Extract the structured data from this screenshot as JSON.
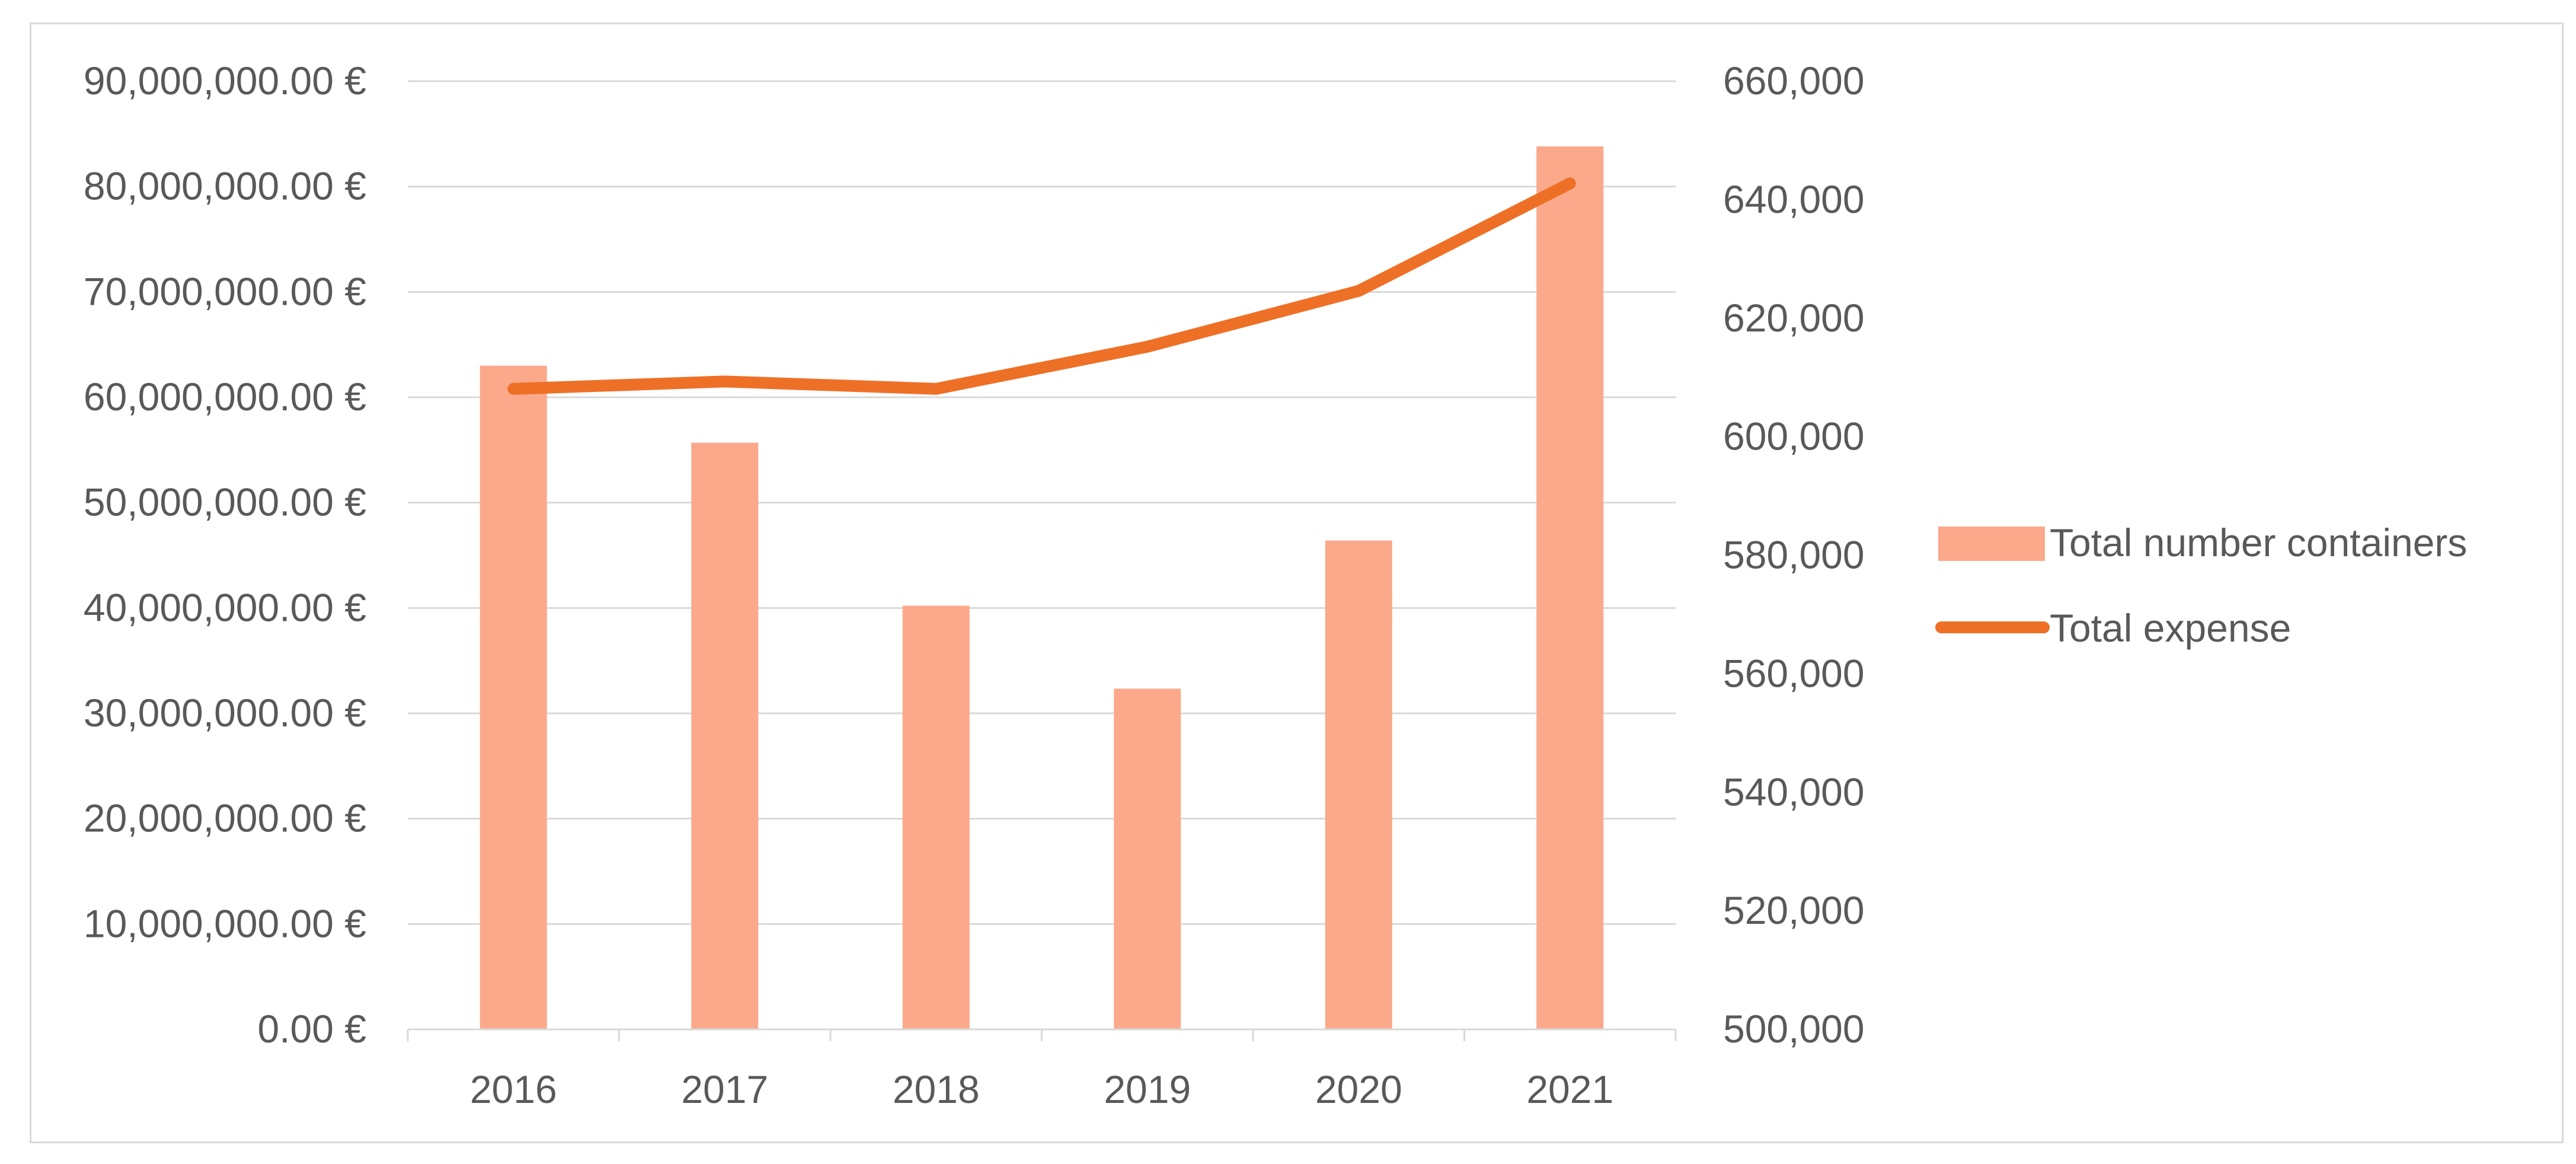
{
  "chart_data": {
    "type": "bar",
    "title": "",
    "xlabel": "",
    "ylabel": "",
    "categories": [
      "2016",
      "2017",
      "2018",
      "2019",
      "2020",
      "2021"
    ],
    "series": [
      {
        "name": "Total number containers",
        "type": "bar",
        "axis": "right",
        "color": "#fca98b",
        "values": [
          612000,
          599000,
          571500,
          557500,
          582500,
          649000
        ]
      },
      {
        "name": "Total expense",
        "type": "line",
        "axis": "left",
        "color": "#ee7027",
        "values": [
          60800000,
          61500000,
          60800000,
          64800000,
          70100000,
          80300000
        ]
      }
    ],
    "y_left": {
      "range": [
        0,
        90000000
      ],
      "ticks": [
        0,
        10000000,
        20000000,
        30000000,
        40000000,
        50000000,
        60000000,
        70000000,
        80000000,
        90000000
      ],
      "tick_labels": [
        "0.00 €",
        "10,000,000.00 €",
        "20,000,000.00 €",
        "30,000,000.00 €",
        "40,000,000.00 €",
        "50,000,000.00 €",
        "60,000,000.00 €",
        "70,000,000.00 €",
        "80,000,000.00 €",
        "90,000,000.00 €"
      ]
    },
    "y_right": {
      "range": [
        500000,
        660000
      ],
      "ticks": [
        500000,
        520000,
        540000,
        560000,
        580000,
        600000,
        620000,
        640000,
        660000
      ],
      "tick_labels": [
        "500,000",
        "520,000",
        "540,000",
        "560,000",
        "580,000",
        "600,000",
        "620,000",
        "640,000",
        "660,000"
      ]
    },
    "grid": true,
    "legend": {
      "position": "right",
      "entries": [
        "Total number containers",
        "Total expense"
      ]
    }
  }
}
